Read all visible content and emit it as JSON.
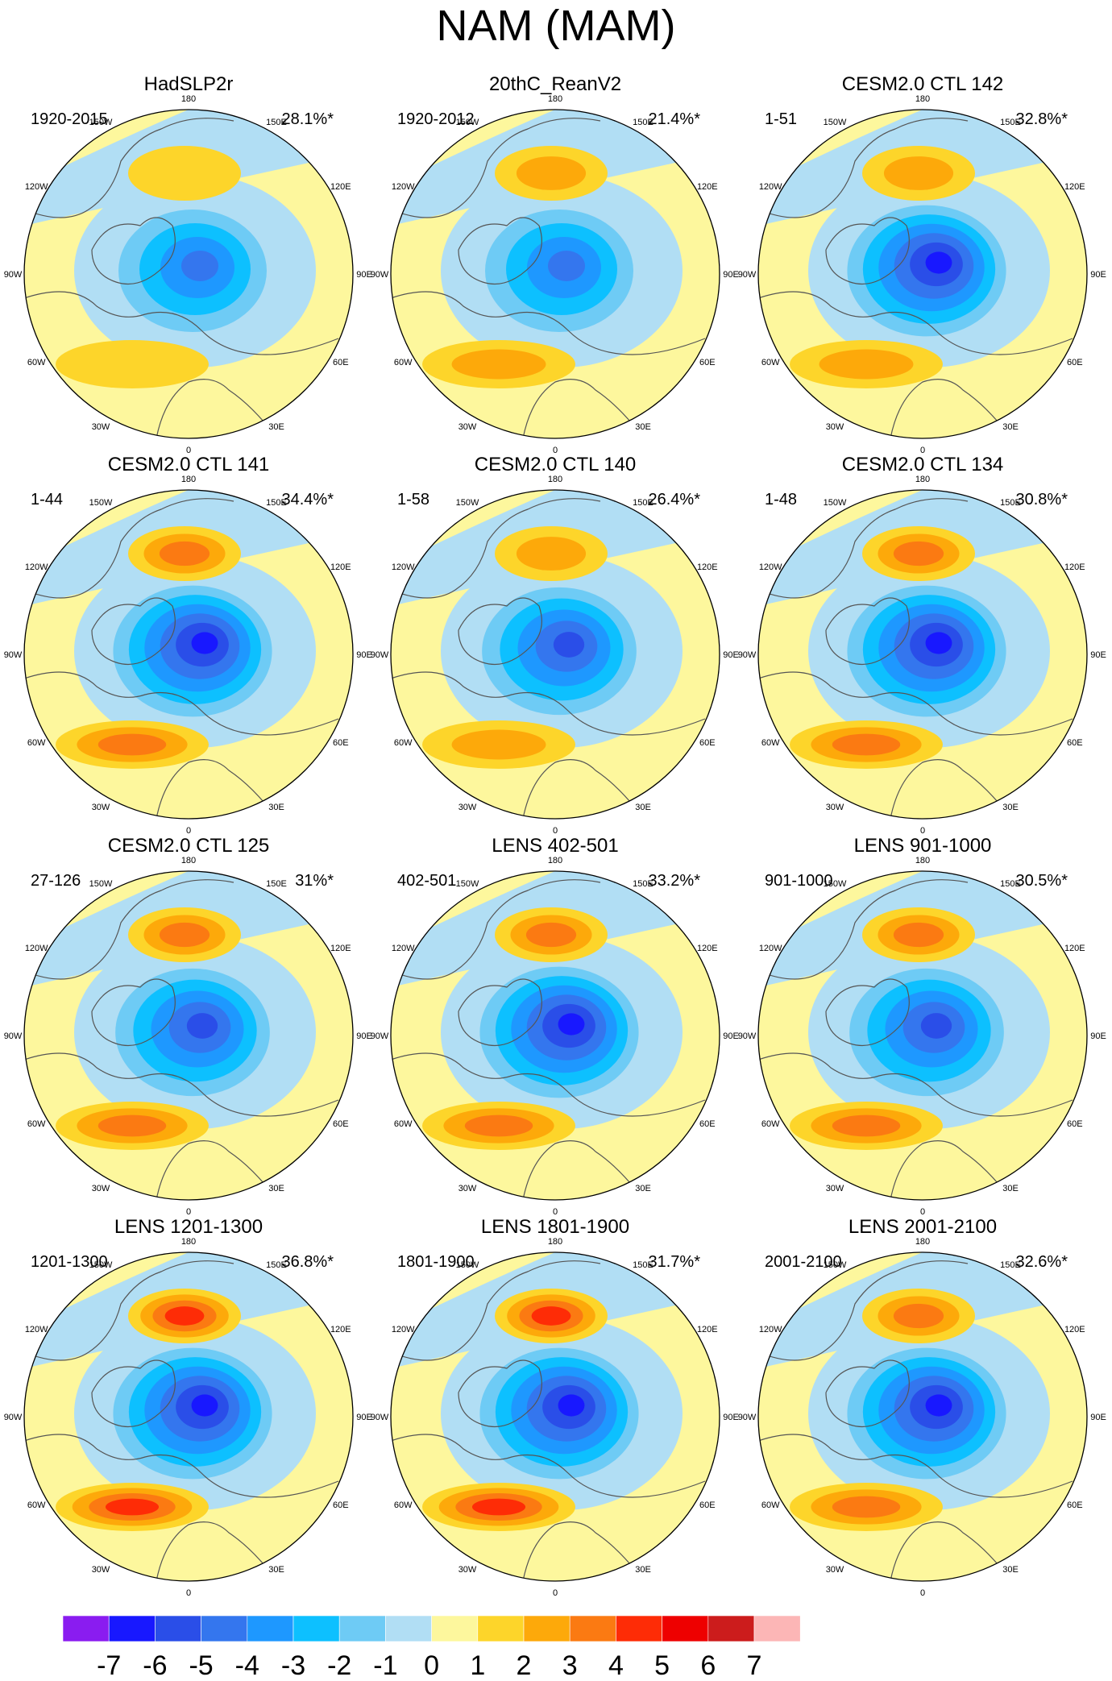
{
  "title": "NAM (MAM)",
  "colors": {
    "background": "#ffffff",
    "land_outline": "#555555",
    "circle_outline": "#000000"
  },
  "chart_data": {
    "type": "polar-stereographic-contour-panels",
    "projection": "north polar stereographic",
    "lon_labels": [
      "180",
      "150E",
      "120E",
      "90E",
      "60E",
      "30E",
      "0",
      "30W",
      "60W",
      "90W",
      "120W",
      "150W"
    ],
    "colorbar": {
      "levels": [
        -7,
        -6,
        -5,
        -4,
        -3,
        -2,
        -1,
        0,
        1,
        2,
        3,
        4,
        5,
        6,
        7
      ],
      "tick_labels": [
        "-7",
        "-6",
        "-5",
        "-4",
        "-3",
        "-2",
        "-1",
        "0",
        "1",
        "2",
        "3",
        "4",
        "5",
        "6",
        "7"
      ],
      "colors": [
        "#8a1cf0",
        "#1818ff",
        "#2a4ee8",
        "#3476ee",
        "#1e98ff",
        "#0dc0ff",
        "#6ecbf5",
        "#b1def4",
        "#fdf79d",
        "#fdd52a",
        "#fda90a",
        "#fb7a12",
        "#fe2c06",
        "#ee0000",
        "#cc1c1c",
        "#fcb6b6"
      ]
    },
    "panels": [
      {
        "title": "HadSLP2r",
        "period": "1920-2015",
        "variance": "28.1%*",
        "min_level": -4,
        "max_level": 1
      },
      {
        "title": "20thC_ReanV2",
        "period": "1920-2012",
        "variance": "21.4%*",
        "min_level": -4,
        "max_level": 2
      },
      {
        "title": "CESM2.0 CTL 142",
        "period": "1-51",
        "variance": "32.8%*",
        "min_level": -6,
        "max_level": 2
      },
      {
        "title": "CESM2.0 CTL 141",
        "period": "1-44",
        "variance": "34.4%*",
        "min_level": -6,
        "max_level": 3
      },
      {
        "title": "CESM2.0 CTL 140",
        "period": "1-58",
        "variance": "26.4%*",
        "min_level": -5,
        "max_level": 2
      },
      {
        "title": "CESM2.0 CTL 134",
        "period": "1-48",
        "variance": "30.8%*",
        "min_level": -6,
        "max_level": 3
      },
      {
        "title": "CESM2.0 CTL 125",
        "period": "27-126",
        "variance": "31%*",
        "min_level": -5,
        "max_level": 3
      },
      {
        "title": "LENS 402-501",
        "period": "402-501",
        "variance": "33.2%*",
        "min_level": -6,
        "max_level": 3
      },
      {
        "title": "LENS 901-1000",
        "period": "901-1000",
        "variance": "30.5%*",
        "min_level": -5,
        "max_level": 3
      },
      {
        "title": "LENS 1201-1300",
        "period": "1201-1300",
        "variance": "36.8%*",
        "min_level": -6,
        "max_level": 4
      },
      {
        "title": "LENS 1801-1900",
        "period": "1801-1900",
        "variance": "31.7%*",
        "min_level": -6,
        "max_level": 4
      },
      {
        "title": "LENS 2001-2100",
        "period": "2001-2100",
        "variance": "32.6%*",
        "min_level": -6,
        "max_level": 3
      }
    ]
  }
}
